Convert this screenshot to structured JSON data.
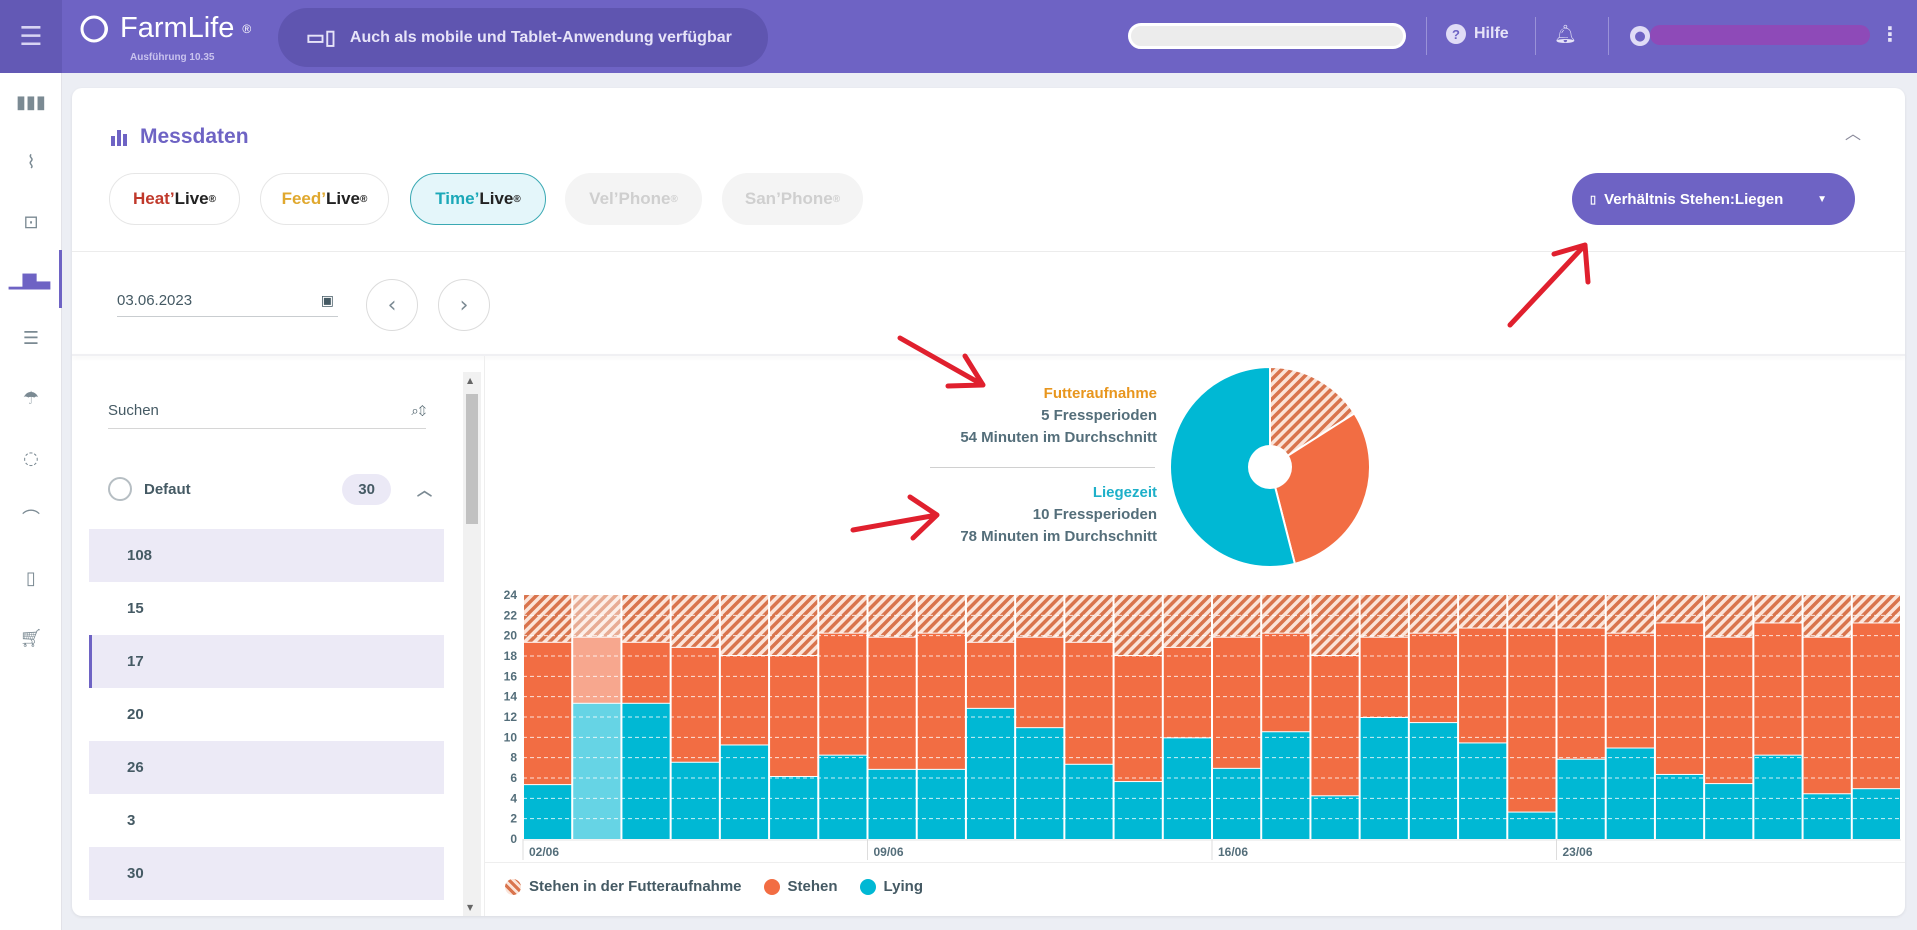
{
  "header": {
    "brand": "FarmLife",
    "brand_mark": "®",
    "version": "Ausführung 10.35",
    "banner": "Auch als mobile und Tablet-Anwendung verfügbar",
    "help": "Hilfe"
  },
  "page": {
    "title": "Messdaten",
    "ratio_button": "Verhältnis Stehen:Liegen",
    "ratio_icon": "▯"
  },
  "products": [
    {
      "a": "Heat",
      "b": "Live",
      "color": "#c0392b",
      "state": "normal"
    },
    {
      "a": "Feed",
      "b": "Live",
      "color": "#e0a82e",
      "state": "normal"
    },
    {
      "a": "Time",
      "b": "Live",
      "color": "#1ba8b8",
      "state": "active"
    },
    {
      "a": "Vel",
      "b": "Phone",
      "color": "#cfcfcf",
      "state": "disabled"
    },
    {
      "a": "San",
      "b": "Phone",
      "color": "#cfcfcf",
      "state": "disabled"
    }
  ],
  "date": "03.06.2023",
  "list": {
    "search_label": "Suchen",
    "group": "Defaut",
    "group_count": "30",
    "items": [
      "108",
      "15",
      "17",
      "20",
      "26",
      "3",
      "30"
    ],
    "selected": "17"
  },
  "summary": {
    "feed": {
      "title": "Futteraufnahme",
      "periods": "5 Fressperioden",
      "avg": "54 Minuten im Durchschnitt",
      "color": "#e8961e"
    },
    "lying": {
      "title": "Liegezeit",
      "periods": "10 Fressperioden",
      "avg": "78 Minuten im Durchschnitt",
      "color": "#1eb0c9"
    }
  },
  "colors": {
    "accent": "#6e63c4",
    "stehen": "#f26d43",
    "lying": "#00b8d4",
    "hatch": "#d9744d"
  },
  "chart_data": [
    {
      "type": "pie",
      "title": "Verhältnis Stehen:Liegen",
      "slices": [
        {
          "name": "Stehen in der Futteraufnahme",
          "value": 16
        },
        {
          "name": "Stehen",
          "value": 30
        },
        {
          "name": "Lying",
          "value": 54
        }
      ]
    },
    {
      "type": "bar",
      "stacked": true,
      "ylim": [
        0,
        24
      ],
      "yticks": [
        0,
        2,
        4,
        6,
        8,
        10,
        12,
        14,
        16,
        18,
        20,
        22,
        24
      ],
      "xticks": [
        {
          "index": 0,
          "label": "02/06"
        },
        {
          "index": 7,
          "label": "09/06"
        },
        {
          "index": 14,
          "label": "16/06"
        },
        {
          "index": 21,
          "label": "23/06"
        }
      ],
      "highlighted_index": 1,
      "legend": [
        "Stehen in der Futteraufnahme",
        "Stehen",
        "Lying"
      ],
      "lying": [
        5.3,
        13.3,
        13.3,
        7.5,
        9.2,
        6.1,
        8.2,
        6.8,
        6.8,
        12.8,
        10.9,
        7.3,
        5.6,
        9.9,
        6.9,
        10.5,
        4.2,
        11.9,
        11.4,
        9.4,
        2.6,
        7.8,
        8.9,
        6.3,
        5.4,
        8.2,
        4.4,
        4.9
      ],
      "stehen_top": [
        19.3,
        19.8,
        19.3,
        18.8,
        18.0,
        18.0,
        20.2,
        19.8,
        20.2,
        19.3,
        19.8,
        19.3,
        18.0,
        18.8,
        19.8,
        20.2,
        18.0,
        19.8,
        20.2,
        20.7,
        20.7,
        20.7,
        20.2,
        21.2,
        19.8,
        21.2,
        19.8,
        21.2
      ],
      "total": 24
    }
  ]
}
